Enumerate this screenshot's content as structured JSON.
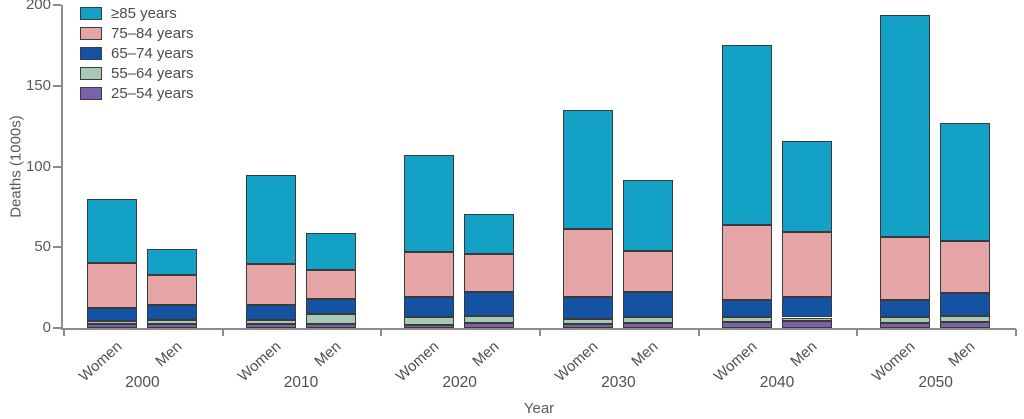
{
  "chart_data": {
    "type": "bar",
    "stacked": true,
    "title": "",
    "xlabel": "Year",
    "ylabel": "Deaths (1000s)",
    "ylim": [
      0,
      200
    ],
    "yticks": [
      0,
      50,
      100,
      150,
      200
    ],
    "grid": false,
    "legend_position": "top-left",
    "colors": {
      "axis": "#8c8c8c",
      "bar_border": "#3a3a3a",
      "tick_text": "#595959",
      "label_text": "#4f4f4f"
    },
    "stack": [
      {
        "label": "25–54 years",
        "color": "#7c61a8"
      },
      {
        "label": "55–64 years",
        "color": "#a6cab2"
      },
      {
        "label": "65–74 years",
        "color": "#1452a4"
      },
      {
        "label": "75–84 years",
        "color": "#e5a4a5"
      },
      {
        "label": "≥85 years",
        "color": "#14a1c6"
      }
    ],
    "legend": [
      {
        "label": "≥85 years",
        "color": "#14a1c6"
      },
      {
        "label": "75–84 years",
        "color": "#e5a4a5"
      },
      {
        "label": "65–74 years",
        "color": "#1452a4"
      },
      {
        "label": "55–64 years",
        "color": "#a6cab2"
      },
      {
        "label": "25–54 years",
        "color": "#7c61a8"
      }
    ],
    "values_note": "each bar's values listed bottom-to-top matching stack order, units = thousands of deaths",
    "groups": [
      {
        "year": "2000",
        "bars": [
          {
            "label": "Women",
            "values": [
              2.5,
              2.0,
              8.0,
              27.5,
              40.0
            ]
          },
          {
            "label": "Men",
            "values": [
              2.5,
              2.5,
              9.0,
              19.0,
              16.0
            ]
          }
        ]
      },
      {
        "year": "2010",
        "bars": [
          {
            "label": "Women",
            "values": [
              2.5,
              2.5,
              9.0,
              25.5,
              55.5
            ]
          },
          {
            "label": "Men",
            "values": [
              2.5,
              6.0,
              9.5,
              18.0,
              23.0
            ]
          }
        ]
      },
      {
        "year": "2020",
        "bars": [
          {
            "label": "Women",
            "values": [
              2.0,
              5.0,
              12.0,
              28.0,
              60.0
            ]
          },
          {
            "label": "Men",
            "values": [
              3.0,
              4.5,
              14.5,
              24.0,
              24.5
            ]
          }
        ]
      },
      {
        "year": "2030",
        "bars": [
          {
            "label": "Women",
            "values": [
              2.5,
              3.0,
              13.5,
              42.0,
              74.0
            ]
          },
          {
            "label": "Men",
            "values": [
              3.3,
              3.3,
              16.0,
              25.0,
              44.0
            ]
          }
        ]
      },
      {
        "year": "2040",
        "bars": [
          {
            "label": "Women",
            "values": [
              4.0,
              3.0,
              10.5,
              46.5,
              111.0
            ]
          },
          {
            "label": "Men",
            "values": [
              4.5,
              2.0,
              13.0,
              40.0,
              56.5
            ]
          }
        ]
      },
      {
        "year": "2050",
        "bars": [
          {
            "label": "Women",
            "values": [
              3.3,
              3.3,
              10.5,
              39.0,
              138.0
            ]
          },
          {
            "label": "Men",
            "values": [
              4.0,
              3.5,
              14.0,
              32.5,
              73.0
            ]
          }
        ]
      }
    ]
  }
}
